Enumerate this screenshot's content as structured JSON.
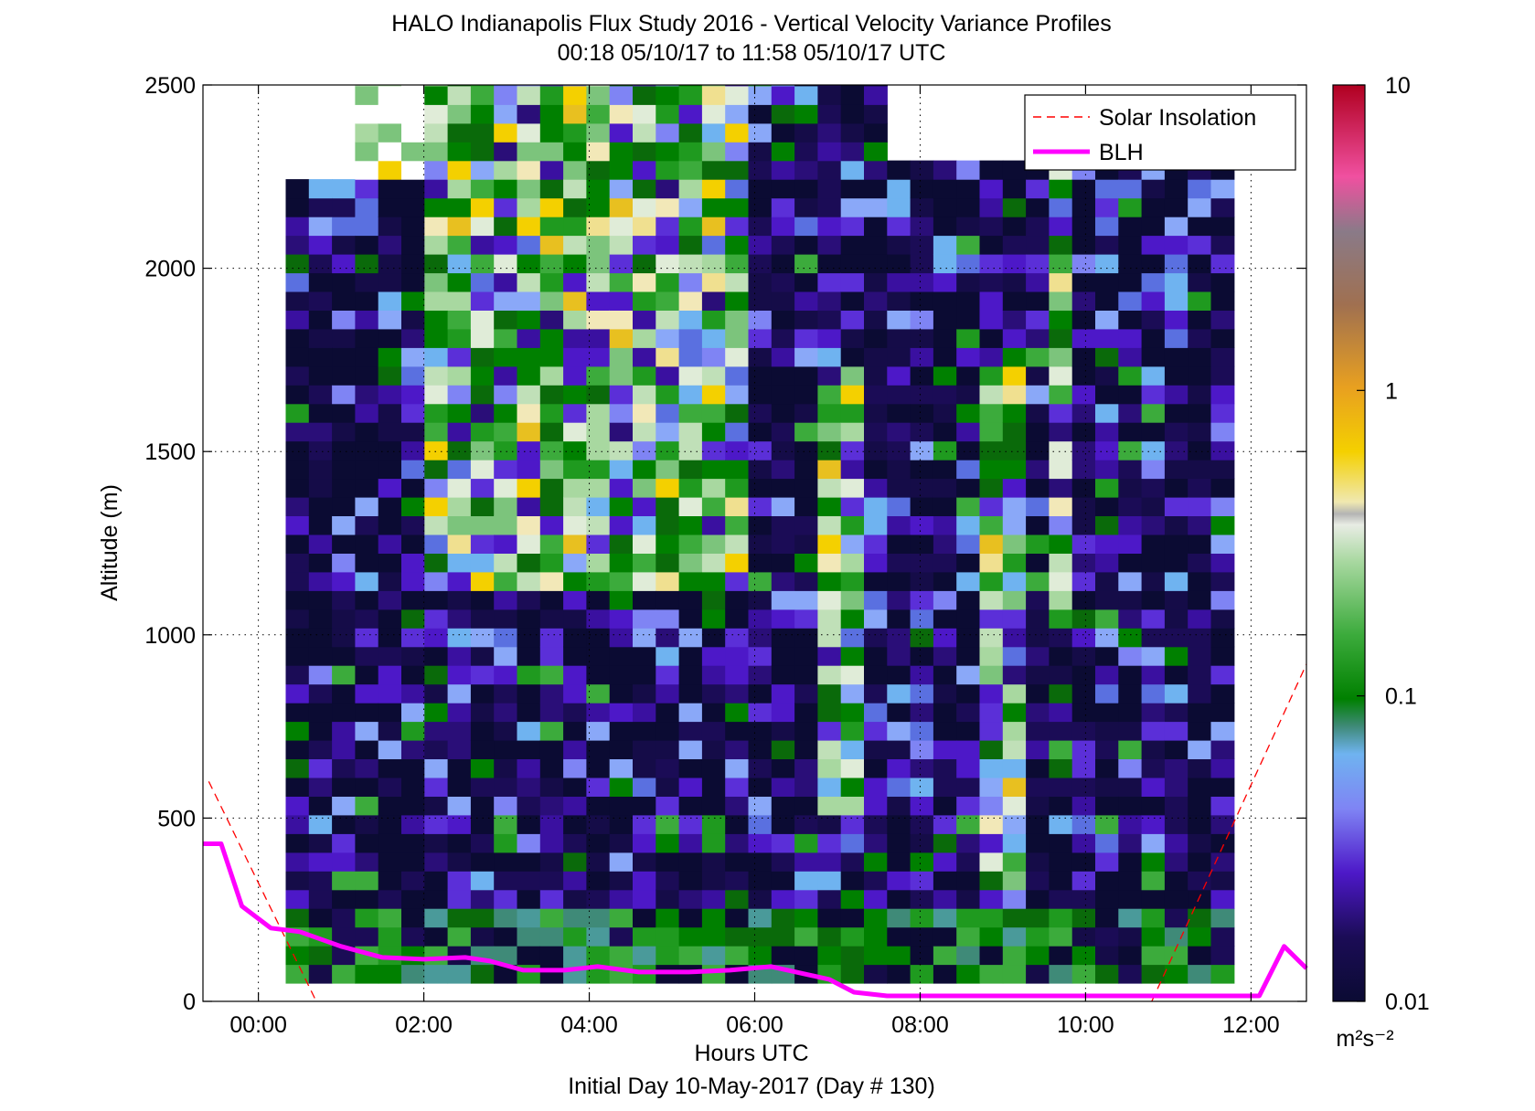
{
  "chart_data": {
    "type": "heatmap",
    "title": "HALO Indianapolis Flux Study 2016 - Vertical Velocity Variance Profiles",
    "subtitle": "00:18 05/10/17 to 11:58 05/10/17  UTC",
    "xlabel": "Hours UTC",
    "xlabel2": "Initial Day 10-May-2017 (Day # 130)",
    "ylabel": "Altitude (m)",
    "xlim_hours": [
      -0.67,
      12.67
    ],
    "ylim": [
      0,
      2500
    ],
    "x_ticks": [
      {
        "v": 0,
        "label": "00:00"
      },
      {
        "v": 2,
        "label": "02:00"
      },
      {
        "v": 4,
        "label": "04:00"
      },
      {
        "v": 6,
        "label": "06:00"
      },
      {
        "v": 8,
        "label": "08:00"
      },
      {
        "v": 10,
        "label": "10:00"
      },
      {
        "v": 12,
        "label": "12:00"
      }
    ],
    "y_ticks": [
      {
        "v": 0,
        "label": "0"
      },
      {
        "v": 500,
        "label": "500"
      },
      {
        "v": 1000,
        "label": "1000"
      },
      {
        "v": 1500,
        "label": "1500"
      },
      {
        "v": 2000,
        "label": "2000"
      },
      {
        "v": 2500,
        "label": "2500"
      }
    ],
    "grid": true,
    "legend_position": "top-right",
    "legend": [
      {
        "name": "Solar Insolation",
        "style": "dashed",
        "color": "#ff0000"
      },
      {
        "name": "BLH",
        "style": "solid",
        "color": "#ff00ff"
      }
    ],
    "colorbar": {
      "scale": "log",
      "range": [
        0.01,
        10
      ],
      "tick_labels": [
        {
          "v": 10,
          "label": "10"
        },
        {
          "v": 1,
          "label": "1"
        },
        {
          "v": 0.1,
          "label": "0.1"
        },
        {
          "v": 0.01,
          "label": "0.01"
        }
      ],
      "units": "m²s⁻²"
    },
    "blh": [
      [
        -0.67,
        430
      ],
      [
        -0.45,
        430
      ],
      [
        -0.2,
        260
      ],
      [
        0.15,
        200
      ],
      [
        0.5,
        190
      ],
      [
        1.0,
        150
      ],
      [
        1.5,
        120
      ],
      [
        2.0,
        115
      ],
      [
        2.5,
        120
      ],
      [
        2.8,
        110
      ],
      [
        3.2,
        85
      ],
      [
        3.7,
        85
      ],
      [
        4.1,
        95
      ],
      [
        4.6,
        80
      ],
      [
        5.2,
        80
      ],
      [
        5.7,
        85
      ],
      [
        6.2,
        95
      ],
      [
        6.5,
        80
      ],
      [
        6.9,
        60
      ],
      [
        7.2,
        25
      ],
      [
        7.6,
        15
      ],
      [
        9.0,
        15
      ],
      [
        10.5,
        15
      ],
      [
        11.5,
        15
      ],
      [
        12.1,
        15
      ],
      [
        12.4,
        150
      ],
      [
        12.67,
        90
      ]
    ],
    "solar": [
      {
        "x": [
          -0.6,
          0.7
        ],
        "y": [
          600,
          0
        ]
      },
      {
        "x": [
          10.8,
          12.67
        ],
        "y": [
          0,
          920
        ]
      }
    ]
  }
}
